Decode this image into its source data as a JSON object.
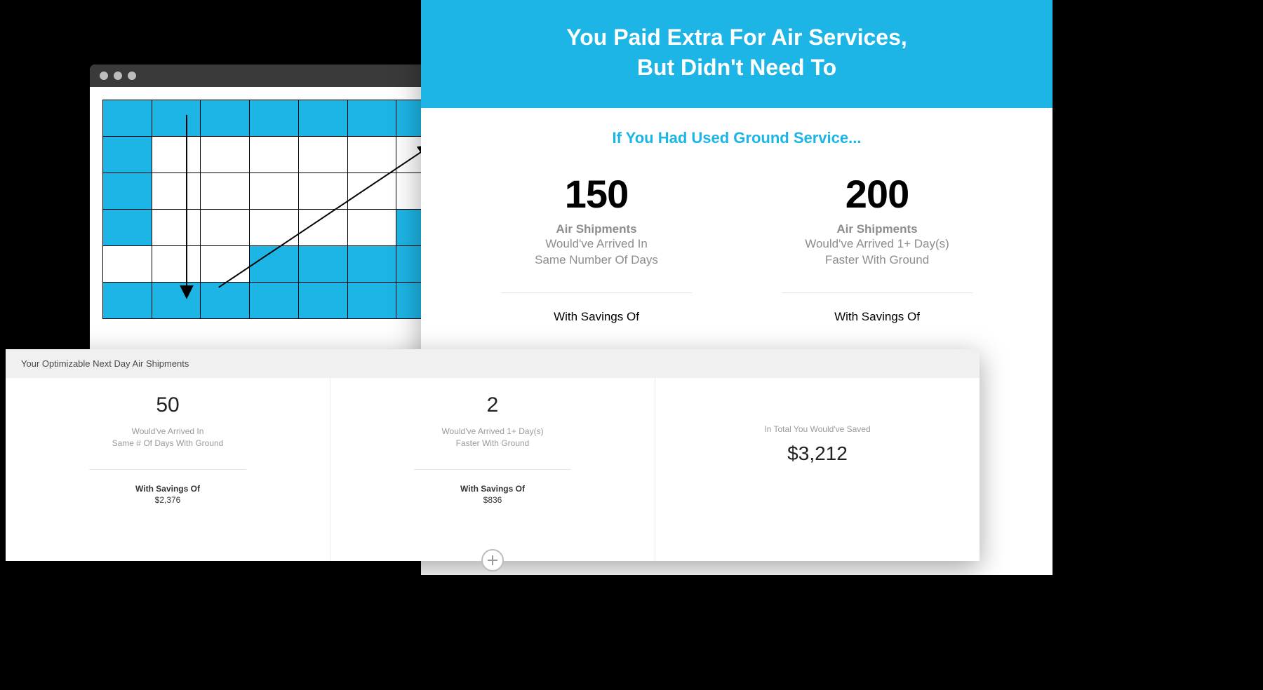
{
  "colors": {
    "accent": "#1db5e6",
    "chrome": "#3a3a3a",
    "dot": "#bdbdbd",
    "cell_border": "#000000",
    "page_bg": "#000000"
  },
  "spreadsheet": {
    "rows": 6,
    "cols": 7,
    "filled_cells": [
      [
        0,
        0
      ],
      [
        0,
        1
      ],
      [
        0,
        2
      ],
      [
        0,
        3
      ],
      [
        0,
        4
      ],
      [
        0,
        5
      ],
      [
        0,
        6
      ],
      [
        1,
        0
      ],
      [
        2,
        0
      ],
      [
        3,
        0
      ],
      [
        3,
        6
      ],
      [
        4,
        3
      ],
      [
        4,
        4
      ],
      [
        4,
        5
      ],
      [
        4,
        6
      ],
      [
        5,
        0
      ],
      [
        5,
        1
      ],
      [
        5,
        2
      ],
      [
        5,
        3
      ],
      [
        5,
        4
      ],
      [
        5,
        5
      ],
      [
        5,
        6
      ]
    ],
    "arrows": [
      {
        "from": [
          119,
          20
        ],
        "to": [
          119,
          283
        ],
        "head_at": "to"
      },
      {
        "from": [
          165,
          268
        ],
        "to": [
          470,
          64
        ],
        "head_at": "to"
      }
    ]
  },
  "report": {
    "title_line1": "You Paid Extra For Air Services,",
    "title_line2": "But Didn't Need To",
    "subtitle": "If You Had Used Ground Service...",
    "columns": [
      {
        "value": "150",
        "bold": "Air Shipments",
        "line1": "Would've Arrived In",
        "line2": "Same Number Of Days",
        "savings_label": "With Savings Of"
      },
      {
        "value": "200",
        "bold": "Air Shipments",
        "line1": "Would've Arrived 1+ Day(s)",
        "line2": "Faster With Ground",
        "savings_label": "With Savings Of"
      }
    ]
  },
  "dashboard": {
    "title": "Your Optimizable Next Day Air Shipments",
    "columns": [
      {
        "value": "50",
        "line1": "Would've Arrived In",
        "line2": "Same # Of Days With Ground",
        "savings_label": "With Savings Of",
        "savings_value": "$2,376"
      },
      {
        "value": "2",
        "line1": "Would've Arrived 1+ Day(s)",
        "line2": "Faster With Ground",
        "savings_label": "With Savings Of",
        "savings_value": "$836"
      }
    ],
    "total": {
      "label": "In Total You Would've Saved",
      "value": "$3,212"
    }
  }
}
